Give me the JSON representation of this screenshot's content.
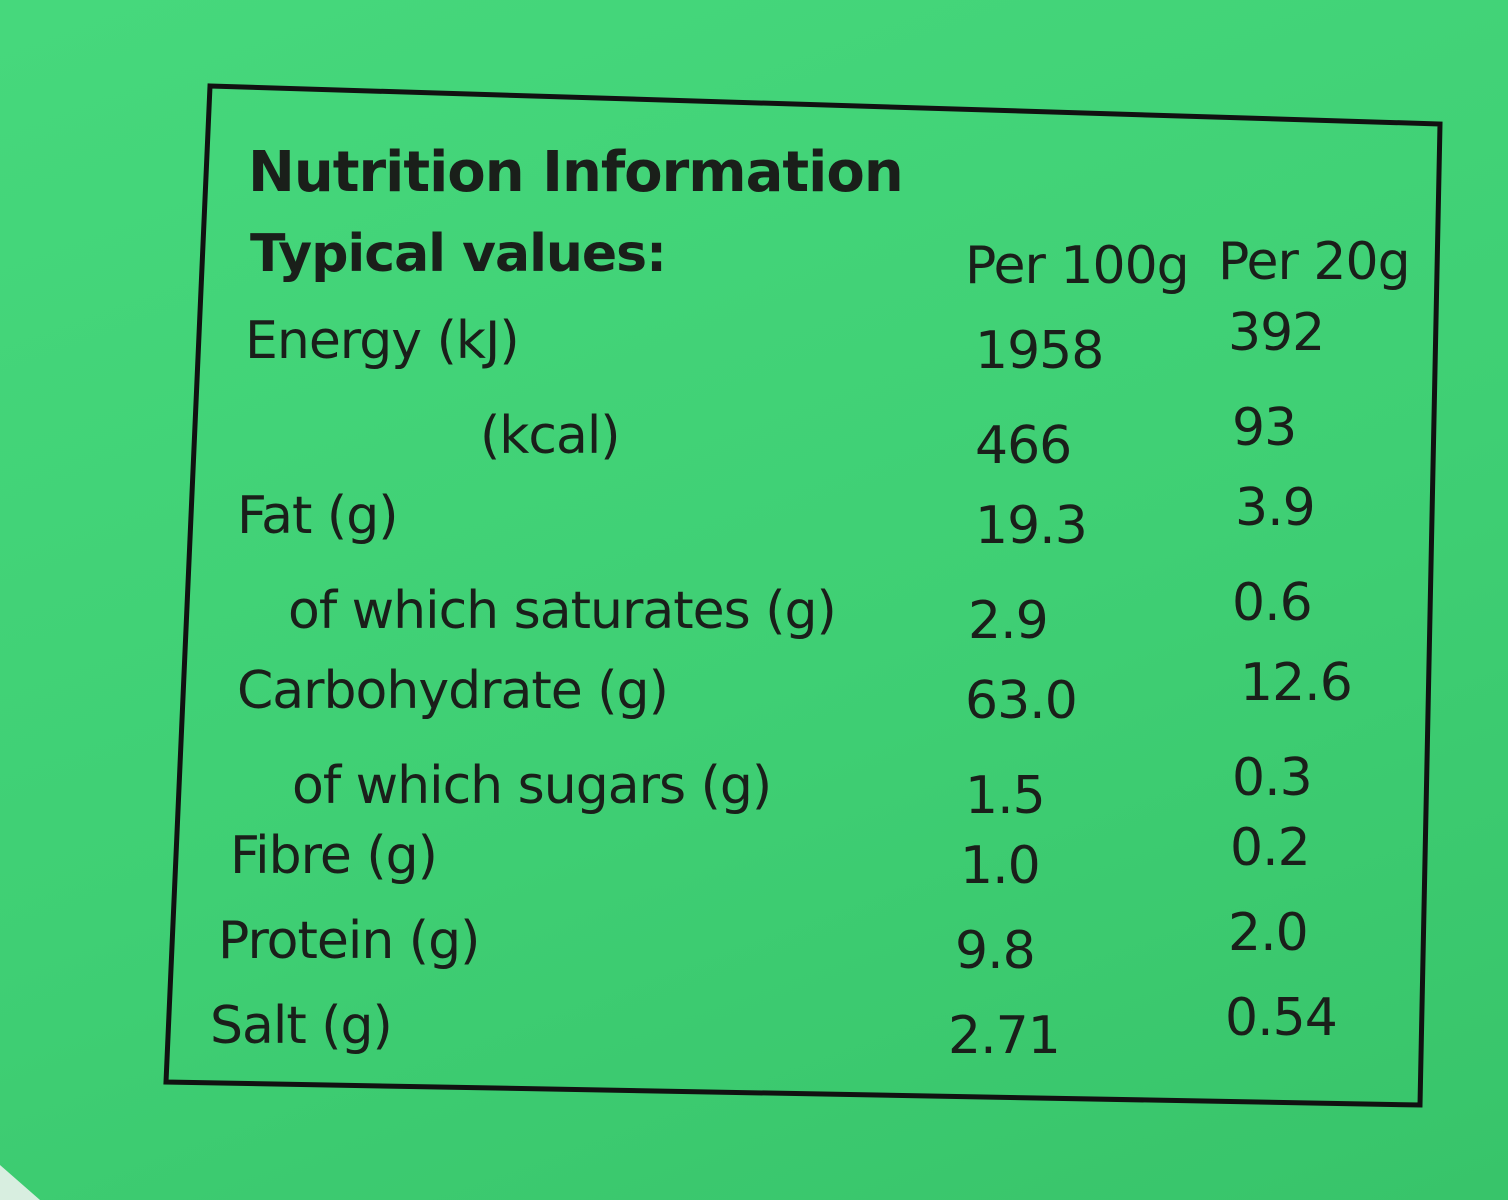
{
  "label": {
    "title": "Nutrition Information",
    "header": [
      "Typical values:",
      "Per 100g",
      "Per 20g"
    ],
    "rows": [
      [
        "Energy (kJ)",
        "1958",
        "392"
      ],
      [
        "(kcal)",
        "466",
        "93"
      ],
      [
        "Fat (g)",
        "19.3",
        "3.9"
      ],
      [
        "of which saturates (g)",
        "2.9",
        "0.6"
      ],
      [
        "Carbohydrate (g)",
        "63.0",
        "12.6"
      ],
      [
        "of which sugars (g)",
        "1.5",
        "0.3"
      ],
      [
        "Fibre (g)",
        "1.0",
        "0.2"
      ],
      [
        "Protein (g)",
        "9.8",
        "2.0"
      ],
      [
        "Salt (g)",
        "2.71",
        "0.54"
      ]
    ]
  }
}
